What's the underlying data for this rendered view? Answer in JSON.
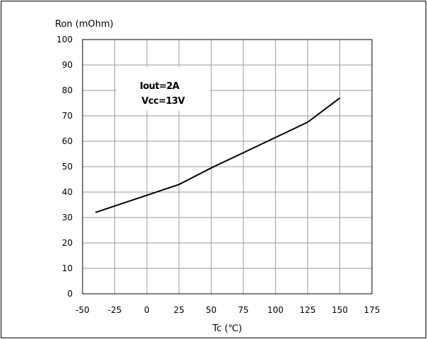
{
  "chart_data": {
    "type": "line",
    "title": "",
    "ylabel": "Ron (mOhm)",
    "xlabel": "Tc (℃)",
    "xlim": [
      -50,
      175
    ],
    "ylim": [
      0,
      100
    ],
    "xticks": [
      -50,
      -25,
      0,
      25,
      50,
      75,
      100,
      125,
      150,
      175
    ],
    "yticks": [
      0,
      10,
      20,
      30,
      40,
      50,
      60,
      70,
      80,
      90,
      100
    ],
    "grid": true,
    "annotations": [
      "Iout=2A",
      "Vcc=13V"
    ],
    "series": [
      {
        "x": [
          -40,
          25,
          50,
          100,
          125,
          150
        ],
        "y": [
          32,
          43,
          49.5,
          61.5,
          67.5,
          77
        ]
      }
    ]
  }
}
